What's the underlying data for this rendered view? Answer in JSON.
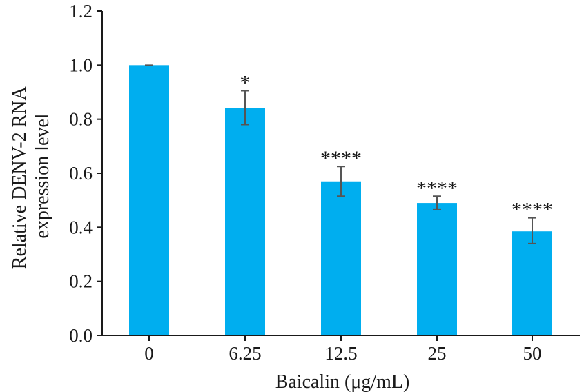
{
  "chart_data": {
    "type": "bar",
    "title": "",
    "xlabel": "Baicalin (μg/mL)",
    "ylabel_lines": [
      "Relative DENV-2 RNA",
      "expression level"
    ],
    "categories": [
      "0",
      "6.25",
      "12.5",
      "25",
      "50"
    ],
    "values": [
      1.0,
      0.84,
      0.57,
      0.49,
      0.385
    ],
    "error_low": [
      1.0,
      0.78,
      0.515,
      0.465,
      0.34
    ],
    "error_high": [
      1.0,
      0.905,
      0.625,
      0.515,
      0.435
    ],
    "significance": [
      "",
      "*",
      "****",
      "****",
      "****"
    ],
    "ylim": [
      0,
      1.2
    ],
    "yticks": [
      "0.0",
      "0.2",
      "0.4",
      "0.6",
      "0.8",
      "1.0",
      "1.2"
    ],
    "bar_color": "#00aeef",
    "grid": false,
    "legend": "none"
  }
}
